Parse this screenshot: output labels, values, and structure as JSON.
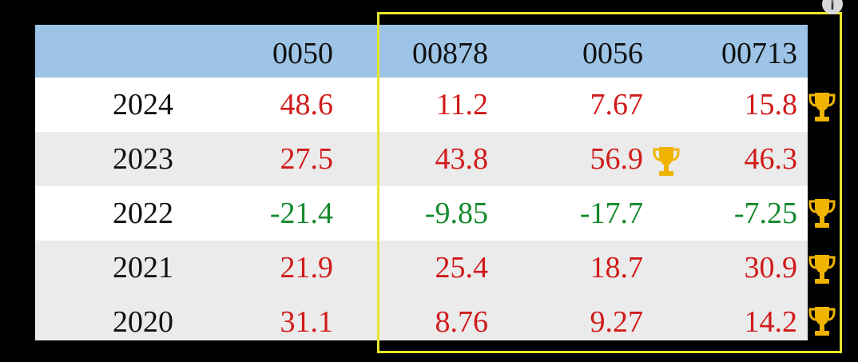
{
  "table": {
    "columns": [
      "",
      "0050",
      "00878",
      "0056",
      "00713"
    ],
    "rows": [
      {
        "year": "2024",
        "values": [
          "48.6",
          "11.2",
          "7.67",
          "15.8"
        ],
        "signs": [
          "pos",
          "pos",
          "pos",
          "pos"
        ],
        "winner": "00713"
      },
      {
        "year": "2023",
        "values": [
          "27.5",
          "43.8",
          "56.9",
          "46.3"
        ],
        "signs": [
          "pos",
          "pos",
          "pos",
          "pos"
        ],
        "winner": "0056"
      },
      {
        "year": "2022",
        "values": [
          "-21.4",
          "-9.85",
          "-17.7",
          "-7.25"
        ],
        "signs": [
          "neg",
          "neg",
          "neg",
          "neg"
        ],
        "winner": "00713"
      },
      {
        "year": "2021",
        "values": [
          "21.9",
          "25.4",
          "18.7",
          "30.9"
        ],
        "signs": [
          "pos",
          "pos",
          "pos",
          "pos"
        ],
        "winner": "00713"
      },
      {
        "year": "2020",
        "values": [
          "31.1",
          "8.76",
          "9.27",
          "14.2"
        ],
        "signs": [
          "pos",
          "pos",
          "pos",
          "pos"
        ],
        "winner": "00713"
      }
    ]
  },
  "icons": {
    "winner": "trophy-icon",
    "info": "info-icon"
  },
  "colors": {
    "header_bg": "#9dc3e6",
    "positive": "#d11a1a",
    "negative": "#148a2c",
    "highlight": "#e6e62a",
    "trophy": "#f0b400"
  }
}
